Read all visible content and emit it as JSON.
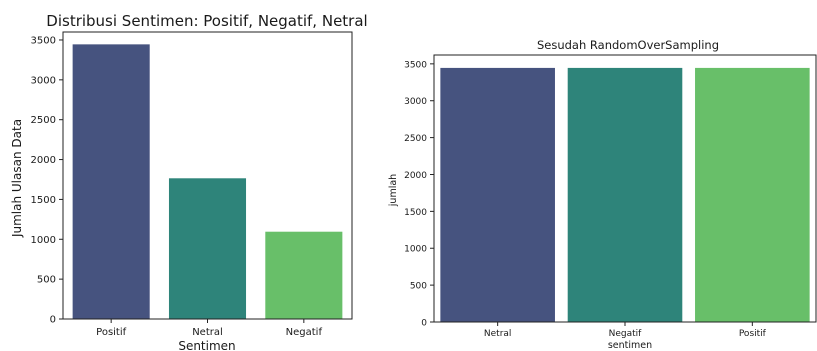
{
  "chart_data": [
    {
      "type": "bar",
      "title": "Distribusi Sentimen: Positif, Negatif, Netral",
      "xlabel": "Sentimen",
      "ylabel": "Jumlah Ulasan Data",
      "categories": [
        "Positif",
        "Netral",
        "Negatif"
      ],
      "values": [
        3445,
        1765,
        1095
      ],
      "colors": [
        "#46537f",
        "#2e847a",
        "#68bf69"
      ],
      "ylim": [
        0,
        3600
      ],
      "yticks": [
        0,
        500,
        1000,
        1500,
        2000,
        2500,
        3000,
        3500
      ],
      "grid": false,
      "legend": "none"
    },
    {
      "type": "bar",
      "title": "Sesudah RandomOverSampling",
      "xlabel": "sentimen",
      "ylabel": "jumlah",
      "categories": [
        "Netral",
        "Negatif",
        "Positif"
      ],
      "values": [
        3445,
        3445,
        3445
      ],
      "colors": [
        "#46537f",
        "#2e847a",
        "#68bf69"
      ],
      "ylim": [
        0,
        3620
      ],
      "yticks": [
        0,
        500,
        1000,
        1500,
        2000,
        2500,
        3000,
        3500
      ],
      "grid": false,
      "legend": "none"
    }
  ]
}
